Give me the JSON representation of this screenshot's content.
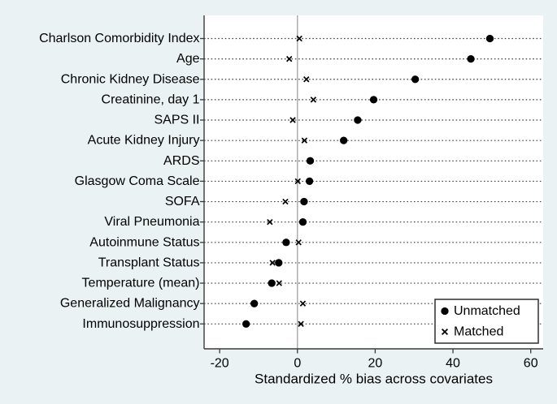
{
  "chart_data": {
    "type": "scatter",
    "title": "",
    "xlabel": "Standardized % bias across covariates",
    "ylabel": "",
    "x_ticks": [
      -20,
      0,
      20,
      40,
      60
    ],
    "xlim": [
      -24,
      63.2
    ],
    "grid": "horizontal-dotted",
    "zero_reference_line": true,
    "legend_position": "bottom-right",
    "categories": [
      "Charlson Comorbidity Index",
      "Age",
      "Chronic Kidney Disease",
      "Creatinine, day 1",
      "SAPS II",
      "Acute Kidney Injury",
      "ARDS",
      "Glasgow Coma Scale",
      "SOFA",
      "Viral Pneumonia",
      "Autoinmune Status",
      "Transplant Status",
      "Temperature (mean)",
      "Generalized Malignancy",
      "Immunosuppression"
    ],
    "series": [
      {
        "name": "Unmatched",
        "marker": "filled-circle",
        "values": [
          49.5,
          44.6,
          30.3,
          19.6,
          15.5,
          11.9,
          3.3,
          3.1,
          1.7,
          1.4,
          -2.9,
          -4.8,
          -6.6,
          -11.1,
          -13.2
        ]
      },
      {
        "name": "Matched",
        "marker": "x",
        "values": [
          0.5,
          -2.1,
          2.3,
          4.1,
          -1.2,
          1.8,
          3.2,
          0.1,
          -3.1,
          -7.1,
          0.3,
          -6.4,
          -4.7,
          1.4,
          0.9
        ]
      }
    ]
  },
  "legend": {
    "entries": [
      {
        "label": "Unmatched",
        "marker": "filled-circle"
      },
      {
        "label": "Matched",
        "marker": "x"
      }
    ]
  },
  "colors": {
    "background": "#eaf2f3",
    "plot_background": "#ffffff",
    "axis": "#3a3a3a",
    "text": "#000000",
    "marker": "#000000",
    "zero_line": "#a8a8a8",
    "gridline": "#3f3f3f",
    "legend_border": "#2e2e2e"
  }
}
